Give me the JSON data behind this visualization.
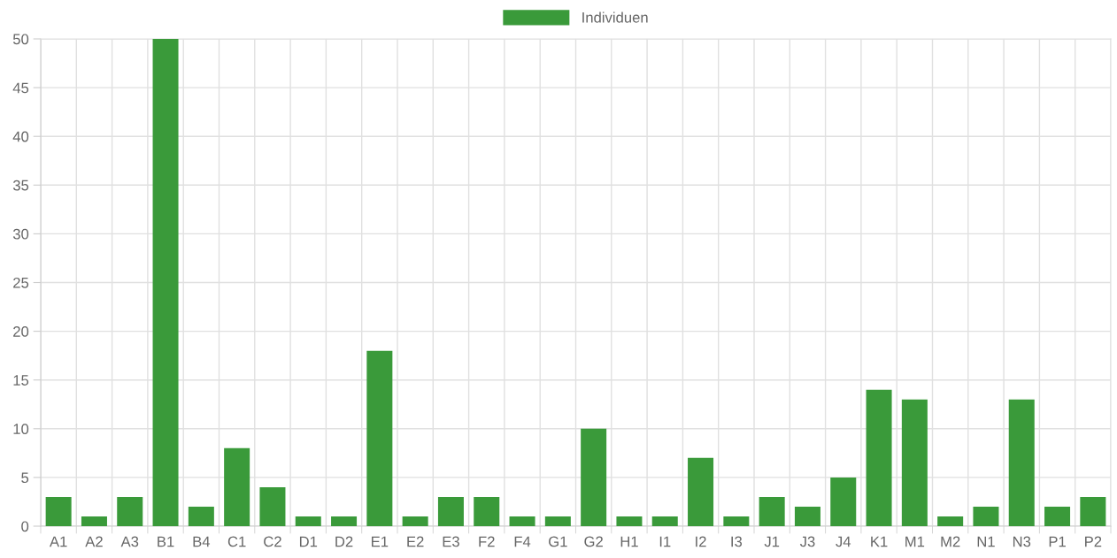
{
  "chart_data": {
    "type": "bar",
    "categories": [
      "A1",
      "A2",
      "A3",
      "B1",
      "B4",
      "C1",
      "C2",
      "D1",
      "D2",
      "E1",
      "E2",
      "E3",
      "F2",
      "F4",
      "G1",
      "G2",
      "H1",
      "I1",
      "I2",
      "I3",
      "J1",
      "J3",
      "J4",
      "K1",
      "M1",
      "M2",
      "N1",
      "N3",
      "P1",
      "P2"
    ],
    "series": [
      {
        "name": "Individuen",
        "color": "#3a9a3a",
        "values": [
          3,
          1,
          3,
          50,
          2,
          8,
          4,
          1,
          1,
          18,
          1,
          3,
          3,
          1,
          1,
          10,
          1,
          1,
          7,
          1,
          3,
          2,
          5,
          14,
          13,
          1,
          2,
          13,
          2,
          3
        ]
      }
    ],
    "ylim": [
      0,
      50
    ],
    "yticks": [
      0,
      5,
      10,
      15,
      20,
      25,
      30,
      35,
      40,
      45,
      50
    ],
    "grid": true,
    "legend": "top"
  }
}
